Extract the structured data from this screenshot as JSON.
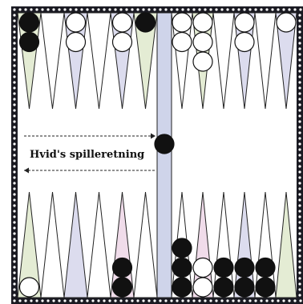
{
  "caption": "Hvid's spilleretning",
  "colors": {
    "frame": "#1a1a22",
    "frame_dots": "#ffffff",
    "board_background": "#ffffff",
    "point_outline": "#222222",
    "point_green": "#e4ecd4",
    "point_blue": "#dcdcee",
    "point_pink": "#f0dcea",
    "bar_blue": "#cfd4ea",
    "white_checker": "#ffffff",
    "black_checker": "#111111",
    "arrow": "#222222"
  },
  "point_pattern": {
    "top_left": [
      "green",
      "white",
      "blue",
      "white",
      "blue",
      "green"
    ],
    "top_right": [
      "white",
      "green",
      "white",
      "blue",
      "white",
      "blue"
    ],
    "bottom_left": [
      "green",
      "white",
      "blue",
      "white",
      "pink",
      "white"
    ],
    "bottom_right": [
      "white",
      "pink",
      "white",
      "blue",
      "white",
      "green"
    ]
  },
  "checkers": {
    "top": [
      {
        "point": 1,
        "color": "black",
        "count": 2
      },
      {
        "point": 3,
        "color": "white",
        "count": 2
      },
      {
        "point": 5,
        "color": "white",
        "count": 2
      },
      {
        "point": 6,
        "color": "black",
        "count": 1
      },
      {
        "point": 7,
        "color": "white",
        "count": 2
      },
      {
        "point": 8,
        "color": "white",
        "count": 3
      },
      {
        "point": 10,
        "color": "white",
        "count": 2
      },
      {
        "point": 12,
        "color": "white",
        "count": 1
      }
    ],
    "bottom": [
      {
        "point": 1,
        "color": "white",
        "count": 1
      },
      {
        "point": 5,
        "color": "black",
        "count": 2
      },
      {
        "point": 7,
        "color": "black",
        "count": 3
      },
      {
        "point": 8,
        "color": "white",
        "count": 2
      },
      {
        "point": 9,
        "color": "black",
        "count": 2
      },
      {
        "point": 10,
        "color": "black",
        "count": 2
      },
      {
        "point": 11,
        "color": "black",
        "count": 2
      }
    ],
    "bar": [
      {
        "color": "black",
        "count": 1
      }
    ]
  }
}
